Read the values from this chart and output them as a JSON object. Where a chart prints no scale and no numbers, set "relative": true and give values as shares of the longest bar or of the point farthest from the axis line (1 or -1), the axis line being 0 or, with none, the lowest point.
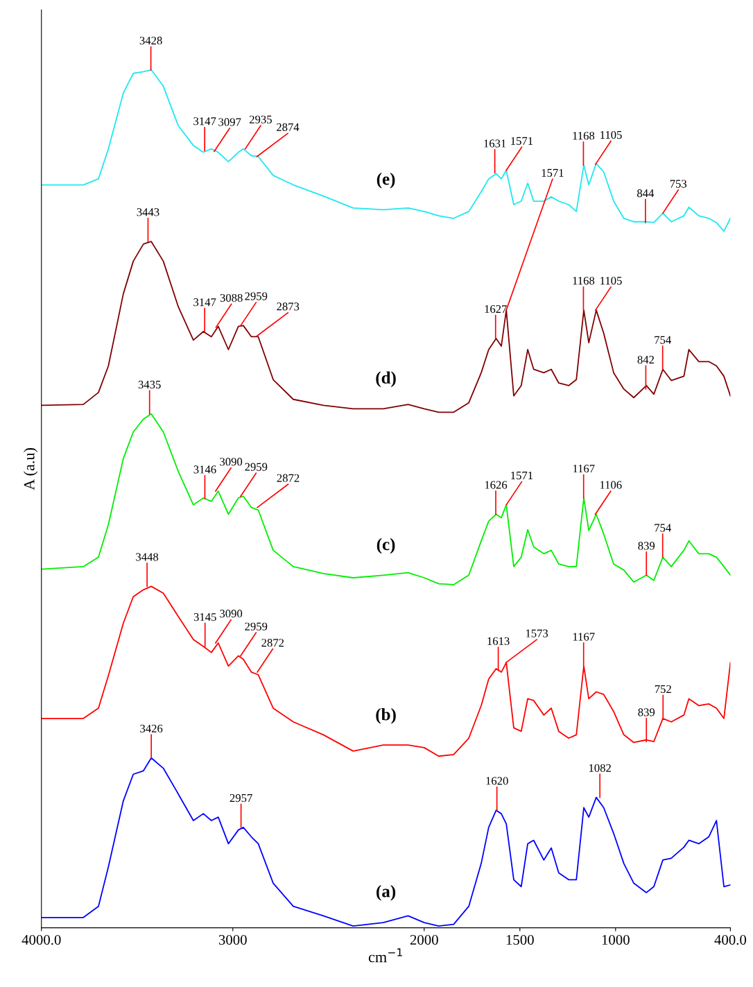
{
  "chart_data": {
    "type": "line",
    "relative": true,
    "xlabel": "cm$^{−1}$",
    "ylabel": "A (a.u)",
    "legend": false,
    "grid": false,
    "xlim": [
      4000,
      400
    ],
    "xticks": [
      {
        "value": 4000,
        "label": "4000.0"
      },
      3000,
      2000,
      1500,
      1000,
      {
        "value": 400,
        "label": "400.0"
      }
    ],
    "x": [
      4000,
      3781,
      3702,
      3650,
      3572,
      3520,
      3467,
      3426,
      3363,
      3285,
      3206,
      3154,
      3112,
      3076,
      3023,
      2971,
      2945,
      2903,
      2867,
      2789,
      2684,
      2527,
      2371,
      2214,
      2084,
      2000,
      1924,
      1846,
      1767,
      1702,
      1663,
      1624,
      1597,
      1571,
      1532,
      1493,
      1459,
      1428,
      1375,
      1336,
      1297,
      1245,
      1205,
      1166,
      1140,
      1101,
      1062,
      1010,
      957,
      905,
      839,
      800,
      753,
      709,
      643,
      617,
      565,
      513,
      473,
      434,
      400
    ],
    "series": [
      {
        "name": "(e)",
        "color": "#1ee8f0",
        "values": [
          0.866,
          0.866,
          0.873,
          0.908,
          0.973,
          0.996,
          0.998,
          1.0,
          0.981,
          0.935,
          0.912,
          0.904,
          0.908,
          0.904,
          0.893,
          0.904,
          0.908,
          0.9,
          0.899,
          0.877,
          0.866,
          0.853,
          0.839,
          0.837,
          0.839,
          0.835,
          0.83,
          0.827,
          0.835,
          0.858,
          0.873,
          0.879,
          0.873,
          0.883,
          0.843,
          0.847,
          0.868,
          0.847,
          0.847,
          0.852,
          0.847,
          0.843,
          0.835,
          0.889,
          0.866,
          0.891,
          0.881,
          0.847,
          0.827,
          0.823,
          0.823,
          0.822,
          0.833,
          0.823,
          0.83,
          0.84,
          0.83,
          0.827,
          0.822,
          0.812,
          0.827
        ]
      },
      {
        "name": "(d)",
        "color": "#800000",
        "values": [
          0.609,
          0.61,
          0.624,
          0.655,
          0.739,
          0.777,
          0.797,
          0.8,
          0.777,
          0.724,
          0.685,
          0.695,
          0.689,
          0.701,
          0.674,
          0.701,
          0.702,
          0.689,
          0.689,
          0.639,
          0.616,
          0.609,
          0.605,
          0.605,
          0.61,
          0.605,
          0.601,
          0.601,
          0.612,
          0.647,
          0.674,
          0.687,
          0.678,
          0.72,
          0.62,
          0.632,
          0.674,
          0.651,
          0.647,
          0.651,
          0.635,
          0.632,
          0.639,
          0.72,
          0.682,
          0.72,
          0.693,
          0.647,
          0.628,
          0.618,
          0.632,
          0.622,
          0.651,
          0.638,
          0.643,
          0.674,
          0.66,
          0.66,
          0.655,
          0.643,
          0.62
        ]
      },
      {
        "name": "(c)",
        "color": "#00ee00",
        "values": [
          0.418,
          0.421,
          0.432,
          0.47,
          0.547,
          0.578,
          0.593,
          0.599,
          0.578,
          0.532,
          0.493,
          0.501,
          0.497,
          0.509,
          0.482,
          0.501,
          0.503,
          0.49,
          0.487,
          0.44,
          0.421,
          0.413,
          0.408,
          0.411,
          0.414,
          0.408,
          0.401,
          0.4,
          0.411,
          0.451,
          0.474,
          0.482,
          0.478,
          0.493,
          0.421,
          0.432,
          0.464,
          0.444,
          0.436,
          0.44,
          0.424,
          0.421,
          0.421,
          0.501,
          0.463,
          0.482,
          0.459,
          0.424,
          0.417,
          0.403,
          0.411,
          0.405,
          0.432,
          0.421,
          0.44,
          0.451,
          0.436,
          0.436,
          0.432,
          0.421,
          0.411
        ]
      },
      {
        "name": "(b)",
        "color": "#ff0000",
        "values": [
          0.244,
          0.244,
          0.256,
          0.294,
          0.355,
          0.386,
          0.394,
          0.398,
          0.39,
          0.363,
          0.336,
          0.328,
          0.321,
          0.332,
          0.305,
          0.317,
          0.313,
          0.298,
          0.295,
          0.256,
          0.24,
          0.225,
          0.206,
          0.213,
          0.213,
          0.21,
          0.2,
          0.202,
          0.221,
          0.259,
          0.29,
          0.302,
          0.298,
          0.309,
          0.233,
          0.229,
          0.267,
          0.265,
          0.248,
          0.256,
          0.229,
          0.221,
          0.225,
          0.305,
          0.267,
          0.275,
          0.272,
          0.252,
          0.225,
          0.216,
          0.219,
          0.217,
          0.244,
          0.24,
          0.248,
          0.267,
          0.259,
          0.261,
          0.256,
          0.244,
          0.309
        ]
      },
      {
        "name": "(a)",
        "color": "#0000ff",
        "values": [
          0.012,
          0.012,
          0.025,
          0.071,
          0.148,
          0.179,
          0.183,
          0.198,
          0.186,
          0.156,
          0.125,
          0.133,
          0.125,
          0.129,
          0.098,
          0.114,
          0.117,
          0.106,
          0.098,
          0.052,
          0.025,
          0.014,
          0.002,
          0.006,
          0.014,
          0.006,
          0.002,
          0.004,
          0.025,
          0.075,
          0.117,
          0.137,
          0.133,
          0.121,
          0.056,
          0.048,
          0.098,
          0.102,
          0.079,
          0.093,
          0.064,
          0.056,
          0.056,
          0.14,
          0.129,
          0.152,
          0.14,
          0.11,
          0.075,
          0.052,
          0.041,
          0.048,
          0.079,
          0.081,
          0.094,
          0.102,
          0.098,
          0.106,
          0.125,
          0.048,
          0.05
        ]
      }
    ],
    "annotations": [
      {
        "text": "3428",
        "x": 3428,
        "y": 1.0
      },
      {
        "text": "3147",
        "x": 3147,
        "y": 0.906
      },
      {
        "text": "3097",
        "x": 3097,
        "y": 0.905
      },
      {
        "text": "2935",
        "x": 2935,
        "y": 0.908
      },
      {
        "text": "2874",
        "x": 2874,
        "y": 0.899
      },
      {
        "text": "1631",
        "x": 1631,
        "y": 0.88
      },
      {
        "text": "1571",
        "x": 1571,
        "y": 0.883
      },
      {
        "text": "1168",
        "x": 1168,
        "y": 0.889
      },
      {
        "text": "1105",
        "x": 1105,
        "y": 0.89
      },
      {
        "text": "844",
        "x": 844,
        "y": 0.822
      },
      {
        "text": "753",
        "x": 753,
        "y": 0.833
      },
      {
        "text": "3443",
        "x": 3443,
        "y": 0.8
      },
      {
        "text": "3147",
        "x": 3147,
        "y": 0.695
      },
      {
        "text": "3088",
        "x": 3088,
        "y": 0.7
      },
      {
        "text": "2959",
        "x": 2959,
        "y": 0.702
      },
      {
        "text": "2873",
        "x": 2873,
        "y": 0.69
      },
      {
        "text": "1627",
        "x": 1627,
        "y": 0.687
      },
      {
        "text": "1571",
        "x": 1571,
        "y": 0.72
      },
      {
        "text": "1168",
        "x": 1168,
        "y": 0.72
      },
      {
        "text": "1105",
        "x": 1105,
        "y": 0.72
      },
      {
        "text": "842",
        "x": 842,
        "y": 0.628
      },
      {
        "text": "754",
        "x": 754,
        "y": 0.651
      },
      {
        "text": "3435",
        "x": 3435,
        "y": 0.599
      },
      {
        "text": "3146",
        "x": 3146,
        "y": 0.5
      },
      {
        "text": "3090",
        "x": 3090,
        "y": 0.509
      },
      {
        "text": "2959",
        "x": 2959,
        "y": 0.503
      },
      {
        "text": "2872",
        "x": 2872,
        "y": 0.49
      },
      {
        "text": "1626",
        "x": 1626,
        "y": 0.482
      },
      {
        "text": "1571",
        "x": 1571,
        "y": 0.493
      },
      {
        "text": "1167",
        "x": 1167,
        "y": 0.501
      },
      {
        "text": "1106",
        "x": 1106,
        "y": 0.482
      },
      {
        "text": "839",
        "x": 839,
        "y": 0.411
      },
      {
        "text": "754",
        "x": 754,
        "y": 0.432
      },
      {
        "text": "3448",
        "x": 3448,
        "y": 0.398
      },
      {
        "text": "3145",
        "x": 3145,
        "y": 0.328
      },
      {
        "text": "3090",
        "x": 3090,
        "y": 0.332
      },
      {
        "text": "2959",
        "x": 2959,
        "y": 0.317
      },
      {
        "text": "2872",
        "x": 2872,
        "y": 0.298
      },
      {
        "text": "1613",
        "x": 1613,
        "y": 0.3
      },
      {
        "text": "1573",
        "x": 1573,
        "y": 0.309
      },
      {
        "text": "1167",
        "x": 1167,
        "y": 0.305
      },
      {
        "text": "839",
        "x": 839,
        "y": 0.217
      },
      {
        "text": "752",
        "x": 752,
        "y": 0.244
      },
      {
        "text": "3426",
        "x": 3426,
        "y": 0.198
      },
      {
        "text": "2957",
        "x": 2957,
        "y": 0.117
      },
      {
        "text": "1620",
        "x": 1620,
        "y": 0.137
      },
      {
        "text": "1082",
        "x": 1082,
        "y": 0.152
      }
    ]
  }
}
